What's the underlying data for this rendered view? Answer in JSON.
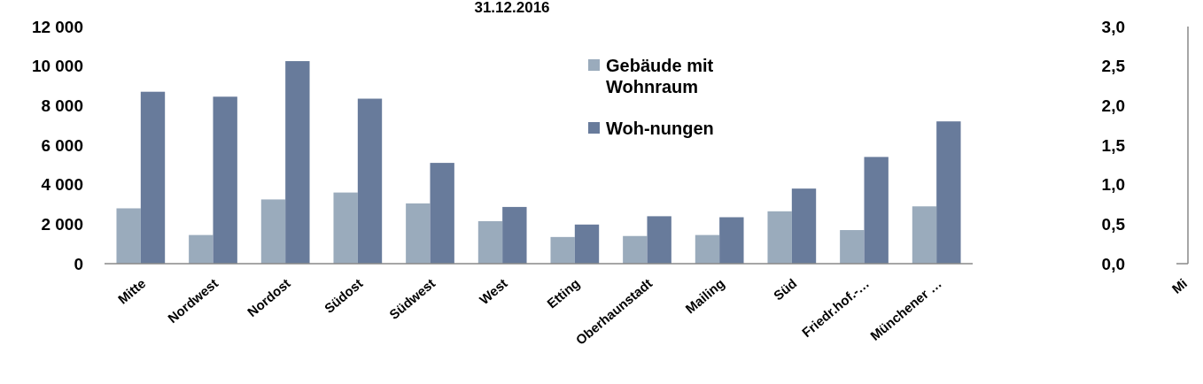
{
  "chart_data": [
    {
      "type": "bar",
      "title": "31.12.2016",
      "categories": [
        "Mitte",
        "Nordwest",
        "Nordost",
        "Südost",
        "Südwest",
        "West",
        "Etting",
        "Oberhaunstadt",
        "Mailing",
        "Süd",
        "Friedr.hof.-…",
        "Münchener …"
      ],
      "series": [
        {
          "name": "Gebäude mit Wohnraum",
          "color": "#9aabbc",
          "values": [
            2800,
            1450,
            3250,
            3600,
            3050,
            2150,
            1350,
            1400,
            1450,
            2650,
            1700,
            2900
          ]
        },
        {
          "name": "Woh-nungen",
          "color": "#687b9b",
          "values": [
            8700,
            8450,
            10250,
            8350,
            5100,
            2870,
            1980,
            2400,
            2350,
            3800,
            5400,
            7200
          ]
        }
      ],
      "ylim": [
        0,
        12000
      ],
      "yticks": [
        0,
        {
          "value": 2000,
          "label": "2 000"
        },
        {
          "value": 4000,
          "label": "4 000"
        },
        {
          "value": 6000,
          "label": "6 000"
        },
        {
          "value": 8000,
          "label": "8 000"
        },
        {
          "value": 10000,
          "label": "10 000"
        },
        {
          "value": 12000,
          "label": "12 000"
        }
      ],
      "grid": false,
      "legend": "top right"
    },
    {
      "type": "bar",
      "categories": [
        "Mi"
      ],
      "values": [
        null
      ],
      "ylim": [
        0,
        3
      ],
      "yticks": [
        {
          "value": 0,
          "label": "0,0"
        },
        {
          "value": 0.5,
          "label": "0,5"
        },
        {
          "value": 1,
          "label": "1,0"
        },
        {
          "value": 1.5,
          "label": "1,5"
        },
        {
          "value": 2,
          "label": "2,0"
        },
        {
          "value": 2.5,
          "label": "2,5"
        },
        {
          "value": 3,
          "label": "3,0"
        }
      ]
    }
  ]
}
